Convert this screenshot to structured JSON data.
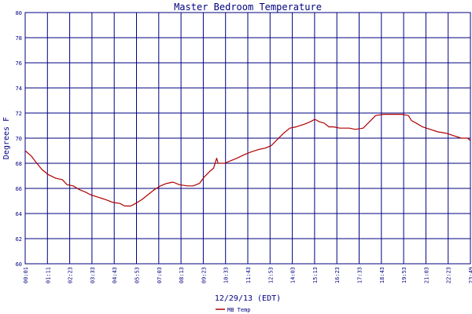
{
  "chart_data": {
    "type": "line",
    "title": "Master Bedroom Temperature",
    "xlabel": "12/29/13 (EDT)",
    "ylabel": "Degrees F",
    "ylim": [
      60,
      80
    ],
    "y_ticks": [
      60,
      62,
      64,
      66,
      68,
      70,
      72,
      74,
      76,
      78,
      80
    ],
    "x_range": [
      "00:01",
      "23:49"
    ],
    "x_tick_labels": [
      "00:01",
      "01:11",
      "02:23",
      "03:33",
      "04:43",
      "05:53",
      "07:03",
      "08:13",
      "09:23",
      "10:33",
      "11:43",
      "12:53",
      "14:03",
      "15:13",
      "16:23",
      "17:33",
      "18:43",
      "19:53",
      "21:03",
      "22:23",
      "23:49"
    ],
    "grid": true,
    "legend_position": "bottom-left",
    "colors": {
      "series": "#b00000",
      "grid": "#000080",
      "frame": "#000080",
      "text": "#000080"
    },
    "series": [
      {
        "name": "MB Temp",
        "points": [
          [
            "00:01",
            69.0
          ],
          [
            "00:20",
            68.6
          ],
          [
            "00:35",
            68.1
          ],
          [
            "00:55",
            67.5
          ],
          [
            "01:15",
            67.1
          ],
          [
            "01:40",
            66.8
          ],
          [
            "02:00",
            66.7
          ],
          [
            "02:15",
            66.3
          ],
          [
            "02:35",
            66.2
          ],
          [
            "02:55",
            65.9
          ],
          [
            "03:15",
            65.7
          ],
          [
            "03:30",
            65.5
          ],
          [
            "03:55",
            65.3
          ],
          [
            "04:20",
            65.1
          ],
          [
            "04:40",
            64.9
          ],
          [
            "05:05",
            64.8
          ],
          [
            "05:20",
            64.6
          ],
          [
            "05:40",
            64.6
          ],
          [
            "05:55",
            64.8
          ],
          [
            "06:15",
            65.1
          ],
          [
            "06:35",
            65.5
          ],
          [
            "06:55",
            65.9
          ],
          [
            "07:15",
            66.2
          ],
          [
            "07:35",
            66.4
          ],
          [
            "07:55",
            66.5
          ],
          [
            "08:15",
            66.3
          ],
          [
            "08:40",
            66.2
          ],
          [
            "09:00",
            66.2
          ],
          [
            "09:20",
            66.4
          ],
          [
            "09:35",
            66.9
          ],
          [
            "09:55",
            67.4
          ],
          [
            "10:05",
            67.6
          ],
          [
            "10:15",
            68.4
          ],
          [
            "10:20",
            68.0
          ],
          [
            "10:40",
            68.0
          ],
          [
            "11:00",
            68.2
          ],
          [
            "11:20",
            68.4
          ],
          [
            "11:45",
            68.7
          ],
          [
            "12:05",
            68.9
          ],
          [
            "12:30",
            69.1
          ],
          [
            "12:50",
            69.2
          ],
          [
            "13:10",
            69.4
          ],
          [
            "13:30",
            69.9
          ],
          [
            "13:50",
            70.4
          ],
          [
            "14:10",
            70.8
          ],
          [
            "14:30",
            70.9
          ],
          [
            "14:55",
            71.1
          ],
          [
            "15:15",
            71.3
          ],
          [
            "15:30",
            71.5
          ],
          [
            "15:45",
            71.3
          ],
          [
            "16:00",
            71.2
          ],
          [
            "16:15",
            70.9
          ],
          [
            "16:30",
            70.9
          ],
          [
            "16:50",
            70.8
          ],
          [
            "17:20",
            70.8
          ],
          [
            "17:40",
            70.7
          ],
          [
            "18:05",
            70.8
          ],
          [
            "18:25",
            71.3
          ],
          [
            "18:45",
            71.8
          ],
          [
            "19:10",
            71.9
          ],
          [
            "19:40",
            71.9
          ],
          [
            "20:10",
            71.9
          ],
          [
            "20:30",
            71.8
          ],
          [
            "20:40",
            71.4
          ],
          [
            "20:55",
            71.2
          ],
          [
            "21:15",
            70.9
          ],
          [
            "21:40",
            70.7
          ],
          [
            "22:05",
            70.5
          ],
          [
            "22:30",
            70.4
          ],
          [
            "22:55",
            70.2
          ],
          [
            "23:20",
            70.0
          ],
          [
            "23:40",
            70.0
          ],
          [
            "23:49",
            69.8
          ]
        ]
      }
    ]
  }
}
